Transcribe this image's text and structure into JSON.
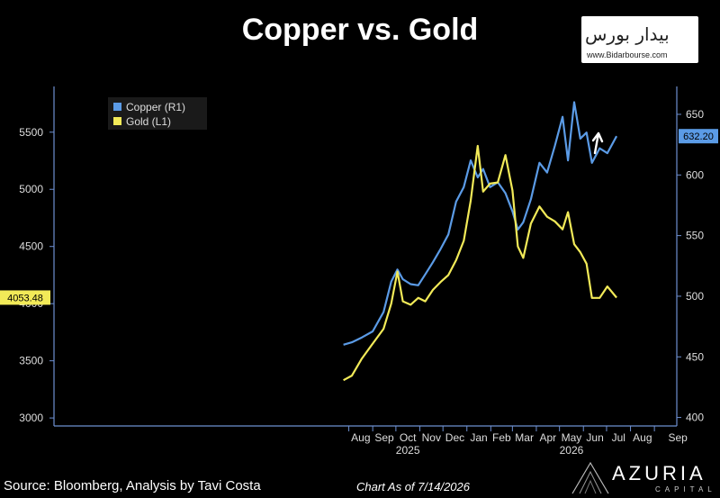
{
  "header": {
    "title": "Copper vs. Gold"
  },
  "watermark": {
    "logo_text": "بیدار بورس",
    "url": "www.Bidarbourse.com"
  },
  "footer": {
    "source": "Source: Bloomberg, Analysis by Tavi Costa",
    "as_of": "Chart As of 7/14/2026",
    "brand": "AZURIA",
    "brand_sub": "CAPITAL"
  },
  "colors": {
    "copper": "#5b9be6",
    "gold": "#f2ea58",
    "axis": "#6d8fd0",
    "background": "#000000"
  },
  "annotation": {
    "arrow": "up-arrow-icon"
  },
  "chart_data": {
    "type": "line",
    "title": "Copper vs. Gold",
    "x_start": "2024-07-15",
    "x_end": "2026-09-30",
    "x_month_ticks": [
      {
        "label": "Aug",
        "date": "2025-08-01"
      },
      {
        "label": "Sep",
        "date": "2025-09-01"
      },
      {
        "label": "Oct",
        "date": "2025-10-01"
      },
      {
        "label": "Nov",
        "date": "2025-11-01"
      },
      {
        "label": "Dec",
        "date": "2025-12-01"
      },
      {
        "label": "Jan",
        "date": "2026-01-01"
      },
      {
        "label": "Feb",
        "date": "2026-02-01"
      },
      {
        "label": "Mar",
        "date": "2026-03-01"
      },
      {
        "label": "Apr",
        "date": "2026-04-01"
      },
      {
        "label": "May",
        "date": "2026-05-01"
      },
      {
        "label": "Jun",
        "date": "2026-06-01"
      },
      {
        "label": "Jul",
        "date": "2026-07-01"
      },
      {
        "label": "Aug",
        "date": "2026-08-01"
      },
      {
        "label": "Sep",
        "date": "2026-09-01"
      }
    ],
    "year_labels": [
      {
        "label": "2025",
        "month_index": 2
      },
      {
        "label": "2026",
        "month_index": 9
      }
    ],
    "left_axis": {
      "ticks": [
        3000,
        3500,
        4000,
        4500,
        5000,
        5500
      ],
      "ylim": [
        2930,
        5900
      ],
      "last_value_label": "4053.48"
    },
    "right_axis": {
      "ticks": [
        400,
        450,
        500,
        550,
        600,
        650
      ],
      "ylim": [
        393,
        673
      ],
      "last_value_label": "632.20"
    },
    "legend": {
      "position": "top-left"
    },
    "series": [
      {
        "name": "Copper (R1)",
        "axis": "right",
        "color": "#5b9be6",
        "x": [
          "2025-07-25",
          "2025-08-05",
          "2025-08-18",
          "2025-09-01",
          "2025-09-15",
          "2025-09-25",
          "2025-10-03",
          "2025-10-10",
          "2025-10-20",
          "2025-10-30",
          "2025-11-08",
          "2025-11-18",
          "2025-11-28",
          "2025-12-08",
          "2025-12-18",
          "2025-12-28",
          "2026-01-06",
          "2026-01-15",
          "2026-01-22",
          "2026-01-31",
          "2026-02-10",
          "2026-02-20",
          "2026-03-01",
          "2026-03-08",
          "2026-03-15",
          "2026-03-25",
          "2026-04-05",
          "2026-04-15",
          "2026-04-25",
          "2026-05-05",
          "2026-05-12",
          "2026-05-20",
          "2026-05-28",
          "2026-06-05",
          "2026-06-12",
          "2026-06-22",
          "2026-07-02",
          "2026-07-14"
        ],
        "values": [
          460,
          462,
          466,
          471,
          487,
          512,
          522,
          514,
          510,
          509,
          518,
          528,
          539,
          551,
          578,
          590,
          612,
          598,
          605,
          590,
          594,
          585,
          570,
          555,
          561,
          580,
          610,
          602,
          624,
          648,
          612,
          660,
          630,
          635,
          610,
          622,
          618,
          632
        ]
      },
      {
        "name": "Gold (L1)",
        "axis": "left",
        "color": "#f2ea58",
        "x": [
          "2025-07-25",
          "2025-08-05",
          "2025-08-18",
          "2025-09-01",
          "2025-09-15",
          "2025-09-25",
          "2025-10-03",
          "2025-10-10",
          "2025-10-20",
          "2025-10-30",
          "2025-11-08",
          "2025-11-18",
          "2025-11-28",
          "2025-12-08",
          "2025-12-18",
          "2025-12-28",
          "2026-01-06",
          "2026-01-15",
          "2026-01-22",
          "2026-01-31",
          "2026-02-10",
          "2026-02-20",
          "2026-03-01",
          "2026-03-08",
          "2026-03-15",
          "2026-03-25",
          "2026-04-05",
          "2026-04-15",
          "2026-04-25",
          "2026-05-05",
          "2026-05-12",
          "2026-05-20",
          "2026-05-28",
          "2026-06-05",
          "2026-06-12",
          "2026-06-22",
          "2026-07-02",
          "2026-07-14"
        ],
        "values": [
          3330,
          3370,
          3520,
          3650,
          3780,
          4000,
          4280,
          4020,
          3990,
          4050,
          4020,
          4120,
          4190,
          4250,
          4380,
          4550,
          4900,
          5380,
          4980,
          5050,
          5060,
          5300,
          4990,
          4500,
          4400,
          4700,
          4850,
          4760,
          4720,
          4650,
          4800,
          4520,
          4450,
          4350,
          4050,
          4050,
          4150,
          4053
        ]
      }
    ]
  }
}
